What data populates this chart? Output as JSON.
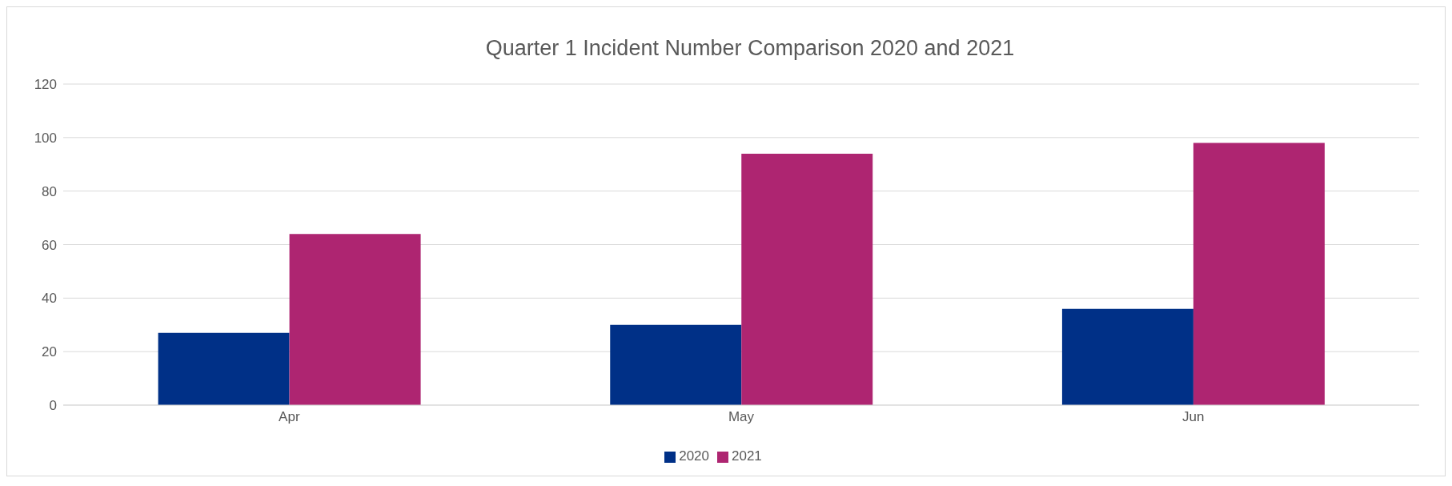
{
  "chart_data": {
    "type": "bar",
    "title": "Quarter 1 Incident Number Comparison 2020 and 2021",
    "categories": [
      "Apr",
      "May",
      "Jun"
    ],
    "series": [
      {
        "name": "2020",
        "color": "#003087",
        "values": [
          27,
          30,
          36
        ]
      },
      {
        "name": "2021",
        "color": "#ae2571",
        "values": [
          64,
          94,
          98
        ]
      }
    ],
    "ylim": [
      0,
      120
    ],
    "yticks": [
      0,
      20,
      40,
      60,
      80,
      100,
      120
    ],
    "grid": "y",
    "legend": "bottom"
  }
}
